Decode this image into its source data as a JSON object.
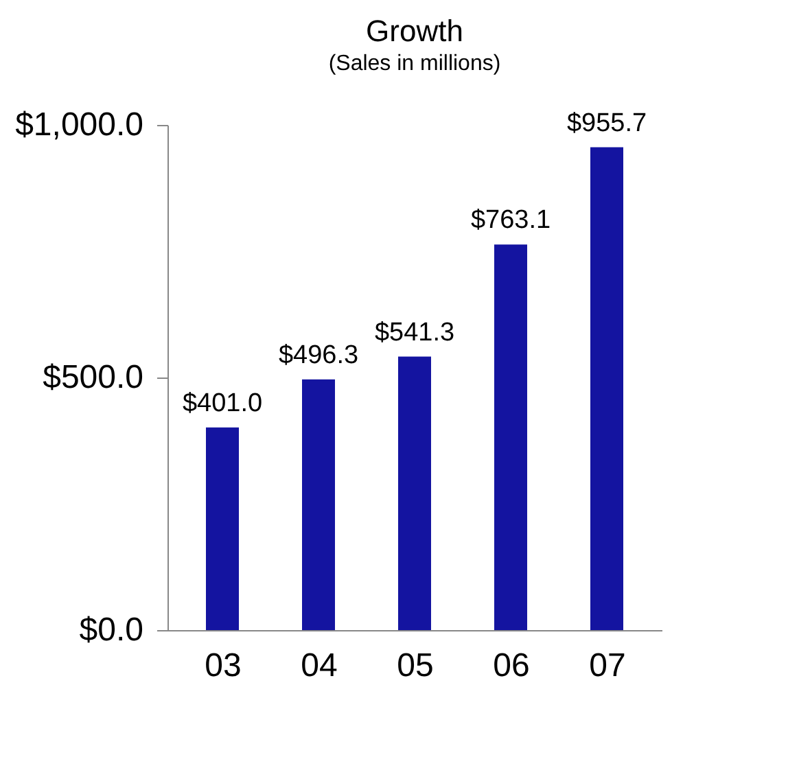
{
  "chart_data": {
    "type": "bar",
    "title": "Growth",
    "subtitle": "(Sales in millions)",
    "categories": [
      "03",
      "04",
      "05",
      "06",
      "07"
    ],
    "values": [
      401.0,
      496.3,
      541.3,
      763.1,
      955.7
    ],
    "value_labels": [
      "$401.0",
      "$496.3",
      "$541.3",
      "$763.1",
      "$955.7"
    ],
    "color": "#1414a0",
    "ylim": [
      0,
      1000
    ],
    "yticks": [
      {
        "value": 0,
        "label": "$0.0"
      },
      {
        "value": 500,
        "label": "$500.0"
      },
      {
        "value": 1000,
        "label": "$1,000.0"
      }
    ],
    "grid": false
  }
}
